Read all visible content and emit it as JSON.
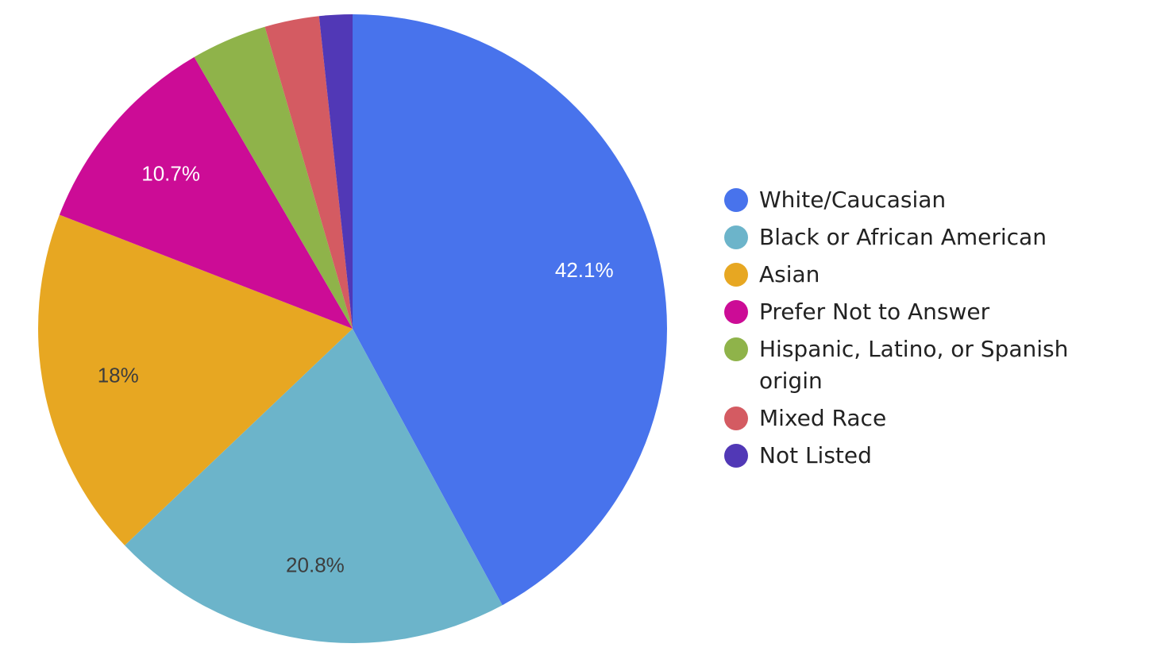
{
  "chart_data": {
    "type": "pie",
    "title": "",
    "start_angle_deg": 0,
    "direction": "clockwise",
    "slices": [
      {
        "label": "White/Caucasian",
        "value": 42.1,
        "value_label": "42.1%",
        "color": "#4873EC",
        "label_color": "#ffffff"
      },
      {
        "label": "Black or African American",
        "value": 20.8,
        "value_label": "20.8%",
        "color": "#6CB4CA",
        "label_color": "#3d3d3d"
      },
      {
        "label": "Asian",
        "value": 18.0,
        "value_label": "18%",
        "color": "#E7A722",
        "label_color": "#3d3d3d"
      },
      {
        "label": "Prefer Not to Answer",
        "value": 10.7,
        "value_label": "10.7%",
        "color": "#CC0C96",
        "label_color": "#ffffff"
      },
      {
        "label": "Hispanic, Latino, or Spanish origin",
        "value": 3.9,
        "value_label": "",
        "color": "#8FB34A",
        "label_color": "#ffffff"
      },
      {
        "label": "Mixed Race",
        "value": 2.8,
        "value_label": "",
        "color": "#D45B62",
        "label_color": "#ffffff"
      },
      {
        "label": "Not Listed",
        "value": 1.7,
        "value_label": "",
        "color": "#5138B6",
        "label_color": "#ffffff"
      }
    ],
    "legend_position": "right"
  }
}
